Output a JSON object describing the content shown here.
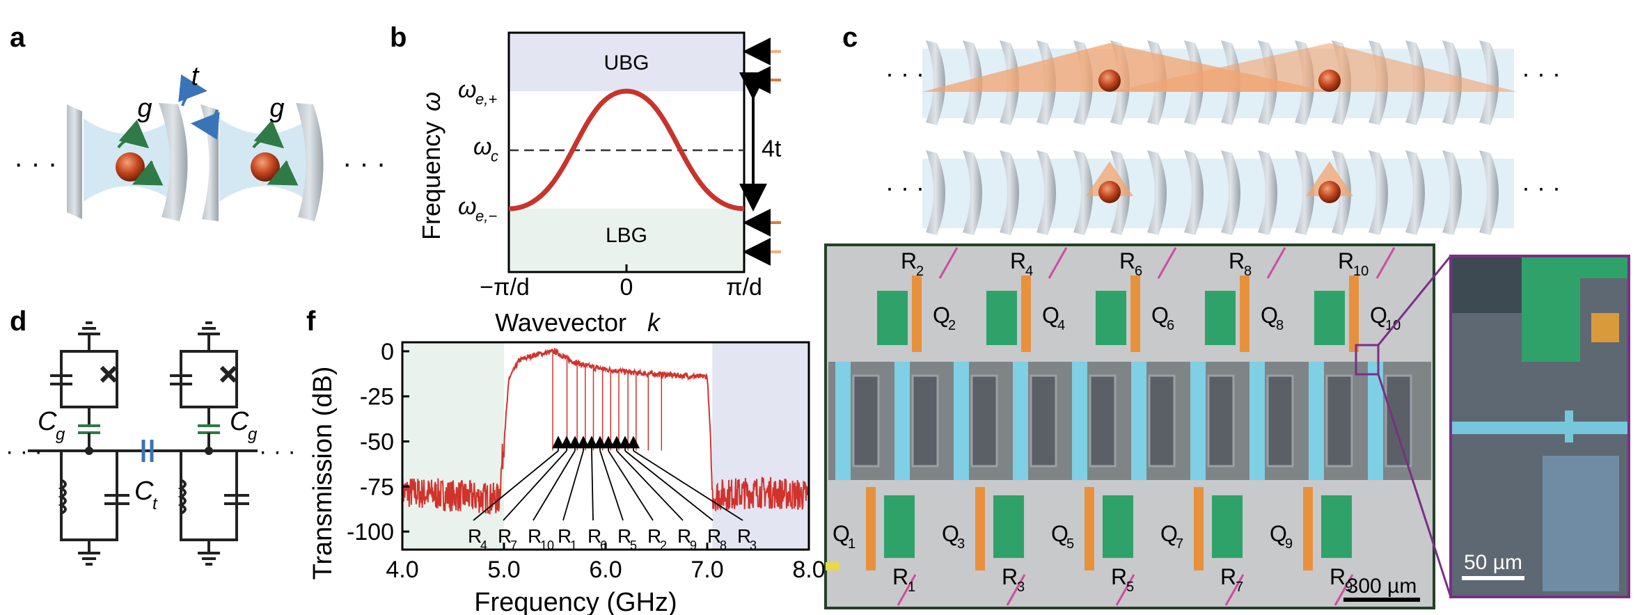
{
  "panels": {
    "a": "a",
    "b": "b",
    "c": "c",
    "d": "d",
    "f": "f"
  },
  "panel_a": {
    "hopping_label": "t",
    "coupling_left": "g",
    "coupling_right": "g",
    "ellipsis": "· · ·"
  },
  "panel_b": {
    "ubg_label": "UBG",
    "lbg_label": "LBG",
    "y_axis_label": "Frequency",
    "y_axis_symbol": "ω",
    "omega_e_plus": "ω",
    "omega_e_plus_sub": "e,+",
    "omega_c": "ω",
    "omega_c_sub": "c",
    "omega_e_minus": "ω",
    "omega_e_minus_sub": "e,−",
    "bandwidth_label": "4t",
    "x_axis_label": "Wavevector",
    "x_axis_symbol": "k",
    "x_ticks": [
      "−π/d",
      "0",
      "π/d"
    ]
  },
  "panel_c": {
    "ellipsis": "· · ·"
  },
  "panel_d": {
    "cg_left": "C",
    "cg_left_sub": "g",
    "cg_right": "C",
    "cg_right_sub": "g",
    "ct": "C",
    "ct_sub": "t",
    "ellipsis": "· · ·"
  },
  "panel_f": {
    "y_axis_label": "Transmission (dB)",
    "x_axis_label": "Frequency (GHz)",
    "resonator_labels": [
      {
        "name": "R",
        "sub": "4"
      },
      {
        "name": "R",
        "sub": "7"
      },
      {
        "name": "R",
        "sub": "10"
      },
      {
        "name": "R",
        "sub": "1"
      },
      {
        "name": "R",
        "sub": "6"
      },
      {
        "name": "R",
        "sub": "5"
      },
      {
        "name": "R",
        "sub": "2"
      },
      {
        "name": "R",
        "sub": "9"
      },
      {
        "name": "R",
        "sub": "8"
      },
      {
        "name": "R",
        "sub": "3"
      }
    ]
  },
  "chip": {
    "top_resonators": [
      {
        "name": "R",
        "sub": "2"
      },
      {
        "name": "R",
        "sub": "4"
      },
      {
        "name": "R",
        "sub": "6"
      },
      {
        "name": "R",
        "sub": "8"
      },
      {
        "name": "R",
        "sub": "10"
      }
    ],
    "top_qubits": [
      {
        "name": "Q",
        "sub": "2"
      },
      {
        "name": "Q",
        "sub": "4"
      },
      {
        "name": "Q",
        "sub": "6"
      },
      {
        "name": "Q",
        "sub": "8"
      },
      {
        "name": "Q",
        "sub": "10"
      }
    ],
    "bottom_qubits": [
      {
        "name": "Q",
        "sub": "1"
      },
      {
        "name": "Q",
        "sub": "3"
      },
      {
        "name": "Q",
        "sub": "5"
      },
      {
        "name": "Q",
        "sub": "7"
      },
      {
        "name": "Q",
        "sub": "9"
      }
    ],
    "bottom_resonators": [
      {
        "name": "R",
        "sub": "1"
      },
      {
        "name": "R",
        "sub": "3"
      },
      {
        "name": "R",
        "sub": "5"
      },
      {
        "name": "R",
        "sub": "7"
      },
      {
        "name": "R",
        "sub": "9"
      }
    ],
    "scale_bar": "300 µm",
    "inset_scale_bar": "50 µm"
  },
  "chart_data": {
    "type": "line",
    "title": "",
    "xlabel": "Frequency (GHz)",
    "ylabel": "Transmission (dB)",
    "xlim": [
      4.0,
      8.0
    ],
    "ylim": [
      -110,
      5
    ],
    "x_ticks": [
      "4.0",
      "5.0",
      "6.0",
      "7.0",
      "8.0"
    ],
    "y_ticks": [
      "0",
      "-25",
      "-50",
      "-75",
      "-100"
    ],
    "lower_gap_band": [
      4.0,
      5.0
    ],
    "upper_gap_band": [
      7.05,
      8.0
    ],
    "series": [
      {
        "x": [
          4.0,
          4.5,
          4.95,
          5.0,
          5.05,
          5.15,
          5.3,
          5.5,
          5.65,
          5.8,
          6.0,
          6.3,
          6.6,
          6.9,
          7.0,
          7.03,
          7.05,
          7.5,
          8.0
        ],
        "y": [
          -78,
          -80,
          -82,
          -50,
          -15,
          -5,
          -2,
          0,
          -5,
          -8,
          -10,
          -12,
          -13,
          -14,
          -14,
          -45,
          -80,
          -78,
          -80
        ]
      }
    ],
    "colors": {
      "trace": "#d0332c",
      "lower_gap": "#e9f2ec",
      "upper_gap": "#e3e5f2"
    }
  }
}
